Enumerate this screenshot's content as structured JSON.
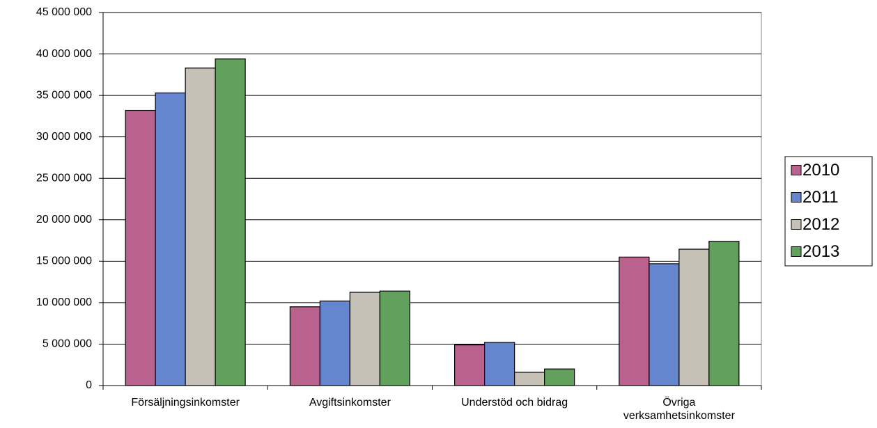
{
  "chart_data": {
    "type": "bar",
    "categories": [
      "Försäljningsinkomster",
      "Avgiftsinkomster",
      "Understöd och bidrag",
      "Övriga\nverksamhetsinkomster"
    ],
    "series": [
      {
        "name": "2010",
        "color": "#b8628d",
        "values": [
          33200000,
          9500000,
          4900000,
          15500000
        ]
      },
      {
        "name": "2011",
        "color": "#6585cf",
        "values": [
          35300000,
          10200000,
          5200000,
          14700000
        ]
      },
      {
        "name": "2012",
        "color": "#c5c1b7",
        "values": [
          38300000,
          11250000,
          1600000,
          16450000
        ]
      },
      {
        "name": "2013",
        "color": "#62a05e",
        "values": [
          39400000,
          11400000,
          2000000,
          17400000
        ]
      }
    ],
    "ylim": [
      0,
      45000000
    ],
    "yticks": [
      0,
      {
        "value": 5000000,
        "label": "5 000 000"
      },
      {
        "value": 10000000,
        "label": "10 000 000"
      },
      {
        "value": 15000000,
        "label": "15 000 000"
      },
      {
        "value": 20000000,
        "label": "20 000 000"
      },
      {
        "value": 25000000,
        "label": "25 000 000"
      },
      {
        "value": 30000000,
        "label": "30 000 000"
      },
      {
        "value": 35000000,
        "label": "35 000 000"
      },
      {
        "value": 40000000,
        "label": "40 000 000"
      },
      {
        "value": 45000000,
        "label": "45 000 000"
      }
    ],
    "grid": true,
    "legend": "right"
  }
}
